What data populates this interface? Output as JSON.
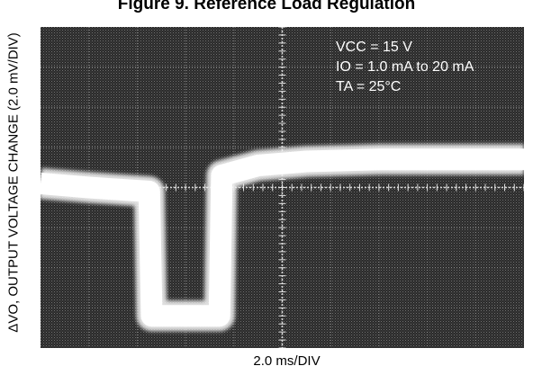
{
  "chart_data": {
    "type": "line",
    "title": "Figure 9. Reference Load Regulation",
    "xlabel": "2.0 ms/DIV",
    "ylabel": "ΔVO, OUTPUT VOLTAGE CHANGE (2.0 mV/DIV)",
    "x_divisions": 10,
    "y_divisions": 8,
    "xlim": [
      0,
      20
    ],
    "ylim": [
      -8,
      8
    ],
    "x_unit": "ms",
    "y_unit": "mV",
    "grid": true,
    "background": "dark oscilloscope screen",
    "annotations": [
      "VCC = 15 V",
      "IO = 1.0 mA to 20 mA",
      "TA = 25°C"
    ],
    "series": [
      {
        "points": [
          [
            0,
            0.2
          ],
          [
            2.0,
            0.0
          ],
          [
            4.5,
            -0.2
          ],
          [
            4.6,
            -6.4
          ],
          [
            7.4,
            -6.4
          ],
          [
            7.5,
            0.6
          ],
          [
            9.0,
            1.1
          ],
          [
            11.0,
            1.3
          ],
          [
            14.0,
            1.4
          ],
          [
            17.0,
            1.4
          ],
          [
            20.0,
            1.4
          ]
        ]
      }
    ]
  }
}
